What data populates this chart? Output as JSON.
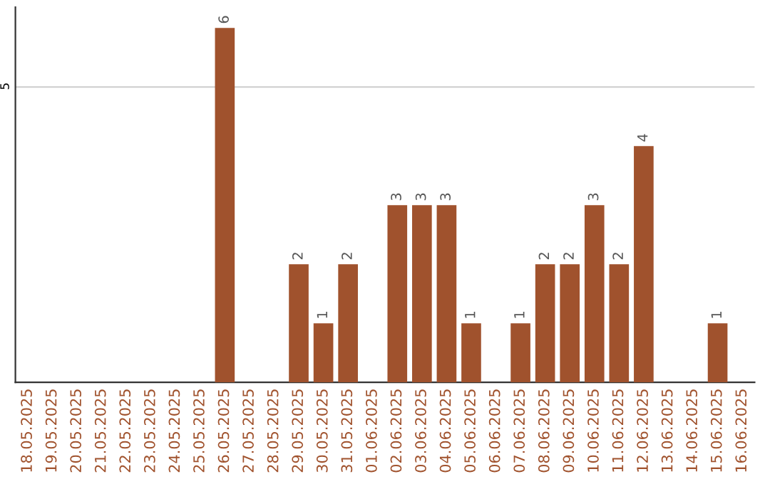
{
  "chart_data": {
    "type": "bar",
    "categories": [
      "18.05.2025",
      "19.05.2025",
      "20.05.2025",
      "21.05.2025",
      "22.05.2025",
      "23.05.2025",
      "24.05.2025",
      "25.05.2025",
      "26.05.2025",
      "27.05.2025",
      "28.05.2025",
      "29.05.2025",
      "30.05.2025",
      "31.05.2025",
      "01.06.2025",
      "02.06.2025",
      "03.06.2025",
      "04.06.2025",
      "05.06.2025",
      "06.06.2025",
      "07.06.2025",
      "08.06.2025",
      "09.06.2025",
      "10.06.2025",
      "11.06.2025",
      "12.06.2025",
      "13.06.2025",
      "14.06.2025",
      "15.06.2025",
      "16.06.2025"
    ],
    "values": [
      0,
      0,
      0,
      0,
      0,
      0,
      0,
      0,
      6,
      0,
      0,
      2,
      1,
      2,
      0,
      3,
      3,
      3,
      1,
      0,
      1,
      2,
      2,
      3,
      2,
      4,
      0,
      0,
      1,
      0
    ],
    "value_labels": [
      null,
      null,
      null,
      null,
      null,
      null,
      null,
      null,
      "6",
      null,
      null,
      "2",
      "1",
      "2",
      null,
      "3",
      "3",
      "3",
      "1",
      null,
      "1",
      "2",
      "2",
      "3",
      "2",
      "4",
      null,
      null,
      "1",
      null
    ],
    "color": "#a0522d",
    "ylim": [
      0,
      6.35
    ],
    "yticks": [
      5
    ],
    "grid": "y"
  }
}
